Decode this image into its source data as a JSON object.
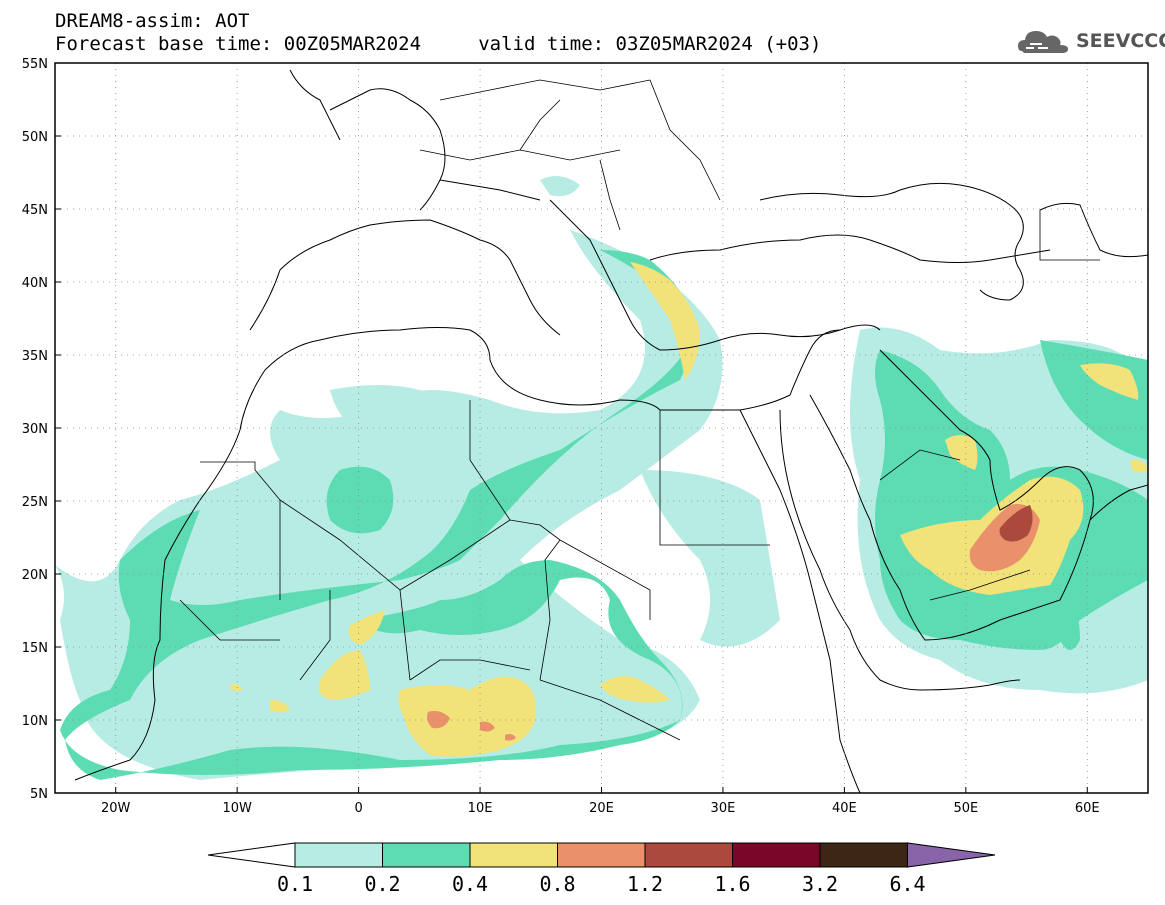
{
  "title": {
    "line1": "DREAM8-assim: AOT",
    "line2": "Forecast base time: 00Z05MAR2024     valid time: 03Z05MAR2024 (+03)"
  },
  "logo": {
    "text": "SEEVCCC",
    "icon": "cloud-icon"
  },
  "map": {
    "lon_range": [
      -25,
      65
    ],
    "lat_range": [
      5,
      55
    ],
    "lon_ticks": [
      {
        "value": -20,
        "label": "20W"
      },
      {
        "value": -10,
        "label": "10W"
      },
      {
        "value": 0,
        "label": "0"
      },
      {
        "value": 10,
        "label": "10E"
      },
      {
        "value": 20,
        "label": "20E"
      },
      {
        "value": 30,
        "label": "30E"
      },
      {
        "value": 40,
        "label": "40E"
      },
      {
        "value": 50,
        "label": "50E"
      },
      {
        "value": 60,
        "label": "60E"
      }
    ],
    "lat_ticks": [
      {
        "value": 5,
        "label": "5N"
      },
      {
        "value": 10,
        "label": "10N"
      },
      {
        "value": 15,
        "label": "15N"
      },
      {
        "value": 20,
        "label": "20N"
      },
      {
        "value": 25,
        "label": "25N"
      },
      {
        "value": 30,
        "label": "30N"
      },
      {
        "value": 35,
        "label": "35N"
      },
      {
        "value": 40,
        "label": "40N"
      },
      {
        "value": 45,
        "label": "45N"
      },
      {
        "value": 50,
        "label": "50N"
      },
      {
        "value": 55,
        "label": "55N"
      }
    ],
    "grid": "dotted"
  },
  "colorbar": {
    "labels": [
      "0.1",
      "0.2",
      "0.4",
      "0.8",
      "1.2",
      "1.6",
      "3.2",
      "6.4"
    ],
    "colors": [
      "#ffffff",
      "#b7ece4",
      "#5ddcb4",
      "#f2e27a",
      "#e8916a",
      "#ab4a3c",
      "#7a0628",
      "#3c2616",
      "#8a64a8"
    ]
  }
}
